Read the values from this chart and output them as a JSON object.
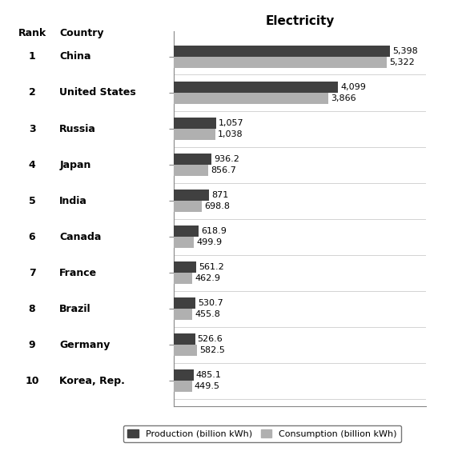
{
  "countries": [
    "China",
    "United States",
    "Russia",
    "Japan",
    "India",
    "Canada",
    "France",
    "Brazil",
    "Germany",
    "Korea, Rep."
  ],
  "ranks": [
    "1",
    "2",
    "3",
    "4",
    "5",
    "6",
    "7",
    "8",
    "9",
    "10"
  ],
  "production": [
    5398,
    4099,
    1057,
    936.2,
    871,
    618.9,
    561.2,
    530.7,
    526.6,
    485.1
  ],
  "consumption": [
    5322,
    3866,
    1038,
    856.7,
    698.8,
    499.9,
    462.9,
    455.8,
    582.5,
    449.5
  ],
  "production_labels": [
    "5,398",
    "4,099",
    "1,057",
    "936.2",
    "871",
    "618.9",
    "561.2",
    "530.7",
    "526.6",
    "485.1"
  ],
  "consumption_labels": [
    "5,322",
    "3,866",
    "1,038",
    "856.7",
    "698.8",
    "499.9",
    "462.9",
    "455.8",
    "582.5",
    "449.5"
  ],
  "production_color": "#404040",
  "consumption_color": "#b0b0b0",
  "title": "Electricity",
  "header_rank": "Rank",
  "header_country": "Country",
  "legend_production": "Production (billion kWh)",
  "legend_consumption": "Consumption (billion kWh)",
  "bar_height": 0.32,
  "xlim": [
    0,
    6300
  ],
  "background_color": "#ffffff",
  "label_fontsize": 8,
  "axis_fontsize": 9,
  "header_fontsize": 9,
  "title_fontsize": 11
}
